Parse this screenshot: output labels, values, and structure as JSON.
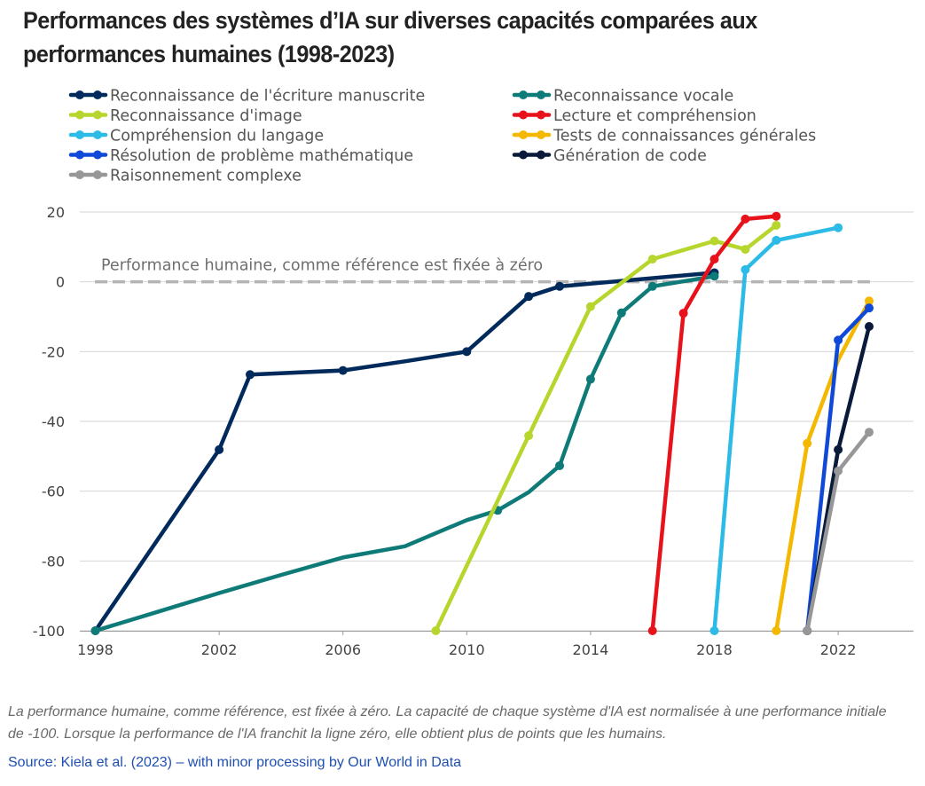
{
  "title_lines": [
    "Performances des systèmes d’IA sur diverses capacités comparées aux",
    "performances humaines (1998-2023)"
  ],
  "note_lines": [
    "La performance humaine, comme référence, est fixée à zéro. La capacité de chaque système d'IA est normalisée à une performance initiale",
    "de -100. Lorsque la performance de l'IA franchit la ligne zéro, elle obtient plus de points que les humains."
  ],
  "source": "Source: Kiela et al. (2023) – with minor processing by Our World in Data",
  "chart_data": {
    "type": "line",
    "title": "Performances des systèmes d’IA sur diverses capacités comparées aux performances humaines (1998-2023)",
    "xlabel": "",
    "ylabel": "",
    "xlim": [
      1998,
      2024.7
    ],
    "ylim": [
      -100,
      20
    ],
    "x_ticks": [
      1998,
      2002,
      2006,
      2010,
      2014,
      2018,
      2022
    ],
    "x_tick_labels": [
      "1998",
      "2002",
      "2006",
      "2010",
      "2014",
      "2018",
      "2022"
    ],
    "y_ticks": [
      -100,
      -80,
      -60,
      -40,
      -20,
      0,
      20
    ],
    "y_tick_labels": [
      "-100",
      "-80",
      "-60",
      "-40",
      "-20",
      "0",
      "20"
    ],
    "grid": "horizontal",
    "legend_position": "top",
    "reference_line": {
      "y": 0,
      "label": "Performance humaine, comme référence est fixée à zéro",
      "color": "#b4b4b4"
    },
    "series": [
      {
        "name": "Reconnaissance de l'écriture manuscrite",
        "color": "#002a5c",
        "points": [
          [
            1998,
            -100
          ],
          [
            2002,
            -48.1
          ],
          [
            2003,
            -26.6
          ],
          [
            2006,
            -25.4
          ],
          [
            2008,
            -22.8
          ],
          [
            2010,
            -20
          ],
          [
            2012,
            -4.2
          ],
          [
            2013,
            -1.3
          ],
          [
            2018,
            2.6
          ]
        ],
        "markers": [
          [
            1998,
            -100
          ],
          [
            2002,
            -48.1
          ],
          [
            2003,
            -26.6
          ],
          [
            2006,
            -25.4
          ],
          [
            2010,
            -20
          ],
          [
            2012,
            -4.2
          ],
          [
            2013,
            -1.3
          ],
          [
            2018,
            2.6
          ]
        ]
      },
      {
        "name": "Reconnaissance vocale",
        "color": "#0f7b78",
        "points": [
          [
            1998,
            -100
          ],
          [
            2000,
            -94.6
          ],
          [
            2002,
            -89.2
          ],
          [
            2004,
            -84
          ],
          [
            2006,
            -79
          ],
          [
            2008,
            -75.8
          ],
          [
            2010,
            -68.3
          ],
          [
            2011,
            -65.5
          ],
          [
            2012,
            -60.3
          ],
          [
            2013,
            -52.7
          ],
          [
            2014,
            -27.9
          ],
          [
            2015,
            -8.9
          ],
          [
            2016,
            -1.3
          ],
          [
            2018,
            1.6
          ]
        ],
        "markers": [
          [
            1998,
            -100
          ],
          [
            2011,
            -65.5
          ],
          [
            2013,
            -52.7
          ],
          [
            2014,
            -27.9
          ],
          [
            2015,
            -8.9
          ],
          [
            2016,
            -1.3
          ],
          [
            2018,
            1.6
          ]
        ]
      },
      {
        "name": "Reconnaissance d'image",
        "color": "#b7d62d",
        "points": [
          [
            2009,
            -100
          ],
          [
            2012,
            -44.1
          ],
          [
            2014,
            -7.1
          ],
          [
            2016,
            6.5
          ],
          [
            2018,
            11.7
          ],
          [
            2019,
            9.3
          ],
          [
            2020,
            16.2
          ]
        ],
        "markers": [
          [
            2009,
            -100
          ],
          [
            2012,
            -44.1
          ],
          [
            2014,
            -7.1
          ],
          [
            2016,
            6.5
          ],
          [
            2018,
            11.7
          ],
          [
            2019,
            9.3
          ],
          [
            2020,
            16.2
          ]
        ]
      },
      {
        "name": "Lecture et compréhension",
        "color": "#e8121b",
        "points": [
          [
            2016,
            -100
          ],
          [
            2017,
            -9
          ],
          [
            2018,
            6.5
          ],
          [
            2019,
            18
          ],
          [
            2020,
            18.8
          ]
        ],
        "markers": [
          [
            2016,
            -100
          ],
          [
            2017,
            -9
          ],
          [
            2018,
            6.5
          ],
          [
            2019,
            18
          ],
          [
            2020,
            18.8
          ]
        ]
      },
      {
        "name": "Compréhension du langage",
        "color": "#2bbbe6",
        "points": [
          [
            2018,
            -100
          ],
          [
            2019,
            3.5
          ],
          [
            2020,
            11.9
          ],
          [
            2022,
            15.5
          ]
        ],
        "markers": [
          [
            2018,
            -100
          ],
          [
            2019,
            3.5
          ],
          [
            2020,
            11.9
          ],
          [
            2022,
            15.5
          ]
        ]
      },
      {
        "name": "Tests de connaissances générales",
        "color": "#f5b800",
        "points": [
          [
            2020,
            -100
          ],
          [
            2021,
            -46.3
          ],
          [
            2022,
            -22.4
          ],
          [
            2023,
            -5.5
          ]
        ],
        "markers": [
          [
            2020,
            -100
          ],
          [
            2021,
            -46.3
          ],
          [
            2023,
            -5.5
          ]
        ]
      },
      {
        "name": "Résolution de problème mathématique",
        "color": "#1049d8",
        "points": [
          [
            2021,
            -100
          ],
          [
            2022,
            -16.7
          ],
          [
            2023,
            -7.5
          ]
        ],
        "markers": [
          [
            2021,
            -100
          ],
          [
            2022,
            -16.7
          ],
          [
            2023,
            -7.5
          ]
        ]
      },
      {
        "name": "Génération de code",
        "color": "#0a1a3a",
        "points": [
          [
            2021,
            -100
          ],
          [
            2022,
            -48.1
          ],
          [
            2023,
            -12.8
          ]
        ],
        "markers": [
          [
            2021,
            -100
          ],
          [
            2022,
            -48.1
          ],
          [
            2023,
            -12.8
          ]
        ]
      },
      {
        "name": "Raisonnement complexe",
        "color": "#979797",
        "points": [
          [
            2021,
            -100
          ],
          [
            2022,
            -54.2
          ],
          [
            2023,
            -43.1
          ]
        ],
        "markers": [
          [
            2021,
            -100
          ],
          [
            2022,
            -54.2
          ],
          [
            2023,
            -43.1
          ]
        ]
      }
    ]
  }
}
